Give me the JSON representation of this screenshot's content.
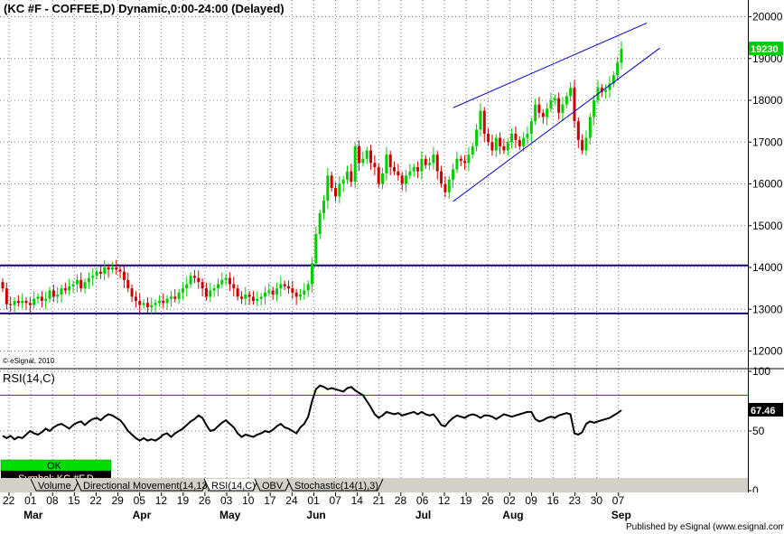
{
  "header": {
    "title": "(KC #F - COFFEE,D) Dynamic,0:00-24:00 (Delayed)"
  },
  "watermark": "© eSignal, 2010",
  "publisher": "Published by eSignal (www.esignal.com)",
  "status": {
    "ok_label": "OK",
    "symbol_label": "Symbol: KC #F,D"
  },
  "tabs": [
    "Volume",
    "Directional Movement(14,13)",
    "RSI(14,C)",
    "OBV",
    "Stochastic(14(1),3)"
  ],
  "active_tab": 2,
  "colors": {
    "up": "#00cc00",
    "down": "#cc0000",
    "trendline": "#0000cc",
    "hline": "#1a0070",
    "rsi_level": "#cc0000",
    "last_price_bg": "#00cc00",
    "ok_bg": "#00dd00"
  },
  "chart_data": [
    {
      "type": "candlestick",
      "title": "(KC #F - COFFEE,D) Dynamic,0:00-24:00 (Delayed)",
      "ylim": [
        11600,
        20400
      ],
      "yticks": [
        12000,
        13000,
        14000,
        15000,
        16000,
        17000,
        18000,
        19000,
        20000
      ],
      "ytick_labels": [
        "12000",
        "13000",
        "14000",
        "15000",
        "16000",
        "17000",
        "18000",
        "19000",
        "20000"
      ],
      "grid": true,
      "last_price": 19230,
      "last_price_label": "19230",
      "x_day_labels": [
        "22",
        "01",
        "08",
        "15",
        "22",
        "29",
        "05",
        "12",
        "19",
        "26",
        "03",
        "10",
        "17",
        "24",
        "01",
        "07",
        "14",
        "21",
        "28",
        "06",
        "12",
        "19",
        "26",
        "02",
        "09",
        "16",
        "23",
        "30",
        "07"
      ],
      "x_month_labels": [
        {
          "label": "Mar",
          "day_index": 1
        },
        {
          "label": "Apr",
          "day_index": 6
        },
        {
          "label": "May",
          "day_index": 10
        },
        {
          "label": "Jun",
          "day_index": 14
        },
        {
          "label": "Jul",
          "day_index": 19
        },
        {
          "label": "Aug",
          "day_index": 23
        },
        {
          "label": "Sep",
          "day_index": 28
        }
      ],
      "horizontal_lines": [
        14050,
        12900
      ],
      "trendlines": [
        {
          "x": [
            20.4,
            29.3
          ],
          "y": [
            17820,
            19850
          ]
        },
        {
          "x": [
            20.4,
            29.9
          ],
          "y": [
            15580,
            19250
          ]
        }
      ],
      "closes": [
        13500,
        13120,
        13100,
        13200,
        13150,
        13200,
        13150,
        13100,
        13250,
        13300,
        13200,
        13250,
        13450,
        13300,
        13350,
        13500,
        13450,
        13550,
        13600,
        13700,
        13500,
        13650,
        13750,
        13800,
        13900,
        13850,
        14000,
        13950,
        14000,
        13950,
        13900,
        13700,
        13500,
        13300,
        13200,
        13100,
        13150,
        13050,
        13100,
        13150,
        13200,
        13150,
        13250,
        13300,
        13250,
        13400,
        13500,
        13600,
        13800,
        13750,
        13650,
        13500,
        13300,
        13450,
        13500,
        13600,
        13700,
        13750,
        13600,
        13500,
        13300,
        13250,
        13350,
        13300,
        13200,
        13250,
        13300,
        13400,
        13450,
        13350,
        13500,
        13600,
        13550,
        13500,
        13400,
        13300,
        13350,
        13450,
        13600,
        14100,
        14800,
        15300,
        15600,
        16200,
        15900,
        15700,
        16000,
        16100,
        16300,
        16050,
        16900,
        16500,
        16600,
        16800,
        16500,
        16400,
        16000,
        16250,
        16700,
        16400,
        16300,
        16200,
        16000,
        16200,
        16300,
        16400,
        16300,
        16600,
        16450,
        16500,
        16700,
        16300,
        16000,
        15800,
        16100,
        16350,
        16600,
        16550,
        16500,
        16700,
        16900,
        17300,
        17750,
        17200,
        17000,
        16800,
        17100,
        16900,
        16800,
        17000,
        17200,
        17050,
        16900,
        17100,
        17200,
        17500,
        17900,
        17700,
        17600,
        17800,
        18000,
        18050,
        17700,
        17900,
        18100,
        18300,
        17500,
        17050,
        16800,
        17100,
        17600,
        18000,
        18300,
        18200,
        18250,
        18400,
        18600,
        18900,
        19230
      ],
      "rsi": {
        "label": "RSI(14,C)",
        "ylim": [
          0,
          100
        ],
        "yticks": [
          0,
          50,
          100
        ],
        "ytick_labels": [
          "0",
          "50",
          "100"
        ],
        "level": 80,
        "last_value": 67.46,
        "last_value_label": "67.46",
        "values": [
          46,
          44,
          46,
          43,
          45,
          44,
          47,
          50,
          48,
          47,
          49,
          52,
          50,
          53,
          55,
          56,
          54,
          52,
          55,
          57,
          58,
          55,
          58,
          60,
          61,
          59,
          62,
          64,
          63,
          61,
          59,
          55,
          50,
          47,
          44,
          42,
          44,
          42,
          43,
          42,
          44,
          47,
          48,
          45,
          48,
          50,
          52,
          55,
          58,
          60,
          63,
          61,
          55,
          50,
          51,
          54,
          57,
          59,
          56,
          53,
          48,
          45,
          47,
          46,
          45,
          47,
          48,
          50,
          49,
          51,
          54,
          56,
          53,
          52,
          50,
          48,
          53,
          56,
          62,
          75,
          85,
          88,
          87,
          85,
          86,
          85,
          84,
          83,
          86,
          87,
          84,
          82,
          80,
          75,
          70,
          64,
          61,
          63,
          66,
          65,
          64,
          65,
          63,
          64,
          65,
          66,
          64,
          66,
          64,
          63,
          64,
          60,
          55,
          54,
          58,
          61,
          63,
          62,
          61,
          63,
          64,
          63,
          61,
          63,
          63,
          62,
          60,
          62,
          64,
          63,
          62,
          63,
          64,
          65,
          66,
          66,
          60,
          58,
          59,
          61,
          62,
          61,
          63,
          64,
          65,
          64,
          48,
          47,
          49,
          56,
          58,
          57,
          58,
          59,
          60,
          61,
          63,
          65,
          67.46
        ]
      }
    }
  ]
}
